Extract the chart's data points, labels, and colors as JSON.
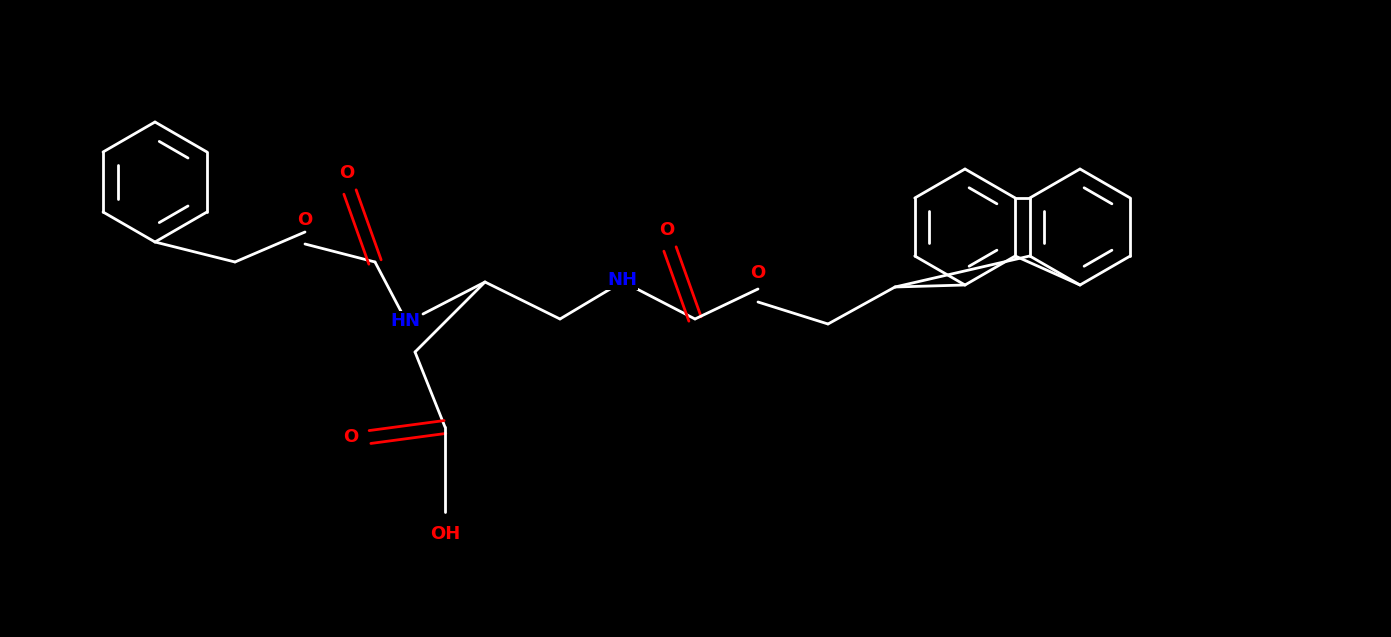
{
  "bg_color": "#000000",
  "wc": "#ffffff",
  "oc": "#ff0000",
  "nc": "#0000ff",
  "lw": 2.0,
  "fs": 13,
  "figsize": [
    13.91,
    6.37
  ],
  "dpi": 100,
  "xlim": [
    0,
    13.91
  ],
  "ylim": [
    0,
    6.37
  ]
}
